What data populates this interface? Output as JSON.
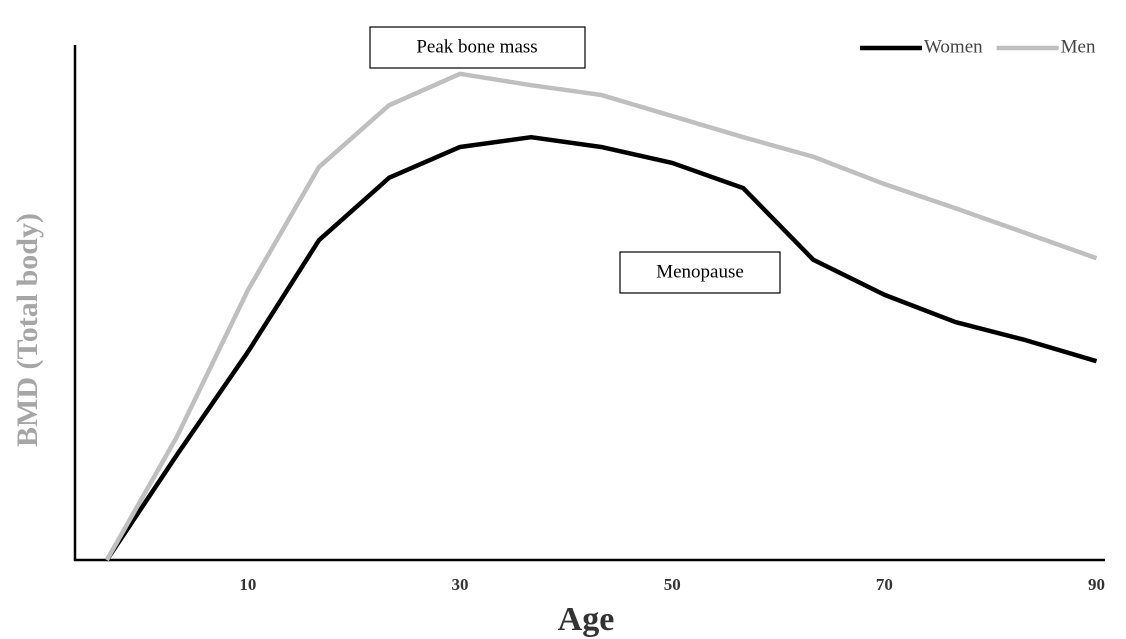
{
  "chart_data": {
    "type": "line",
    "x_label": "Age",
    "y_label": "BMD (Total body)",
    "x": [
      -3.3,
      3.3,
      10,
      16.7,
      23.3,
      30,
      36.7,
      43.3,
      50,
      56.7,
      63.3,
      70,
      76.7,
      83.3,
      90
    ],
    "series": [
      {
        "name": "Women",
        "color": "#000000",
        "values": [
          0,
          20.4,
          40.4,
          62.1,
          74.2,
          80.2,
          82.1,
          80.2,
          77.1,
          72.2,
          58.3,
          51.5,
          46.2,
          42.7,
          38.6
        ]
      },
      {
        "name": "Men",
        "color": "#bfbfbf",
        "values": [
          0,
          23.9,
          52.4,
          76.3,
          88.3,
          94.4,
          92.2,
          90.3,
          86.2,
          82.1,
          78.3,
          73.0,
          68.3,
          63.5,
          58.6
        ]
      }
    ],
    "xlim": [
      -6.3,
      90.8
    ],
    "xticks": [
      10,
      30,
      50,
      70,
      90
    ],
    "ylim": [
      0,
      100
    ],
    "annotations": [
      "Peak bone mass",
      "Menopause"
    ],
    "legend": "top-right"
  }
}
